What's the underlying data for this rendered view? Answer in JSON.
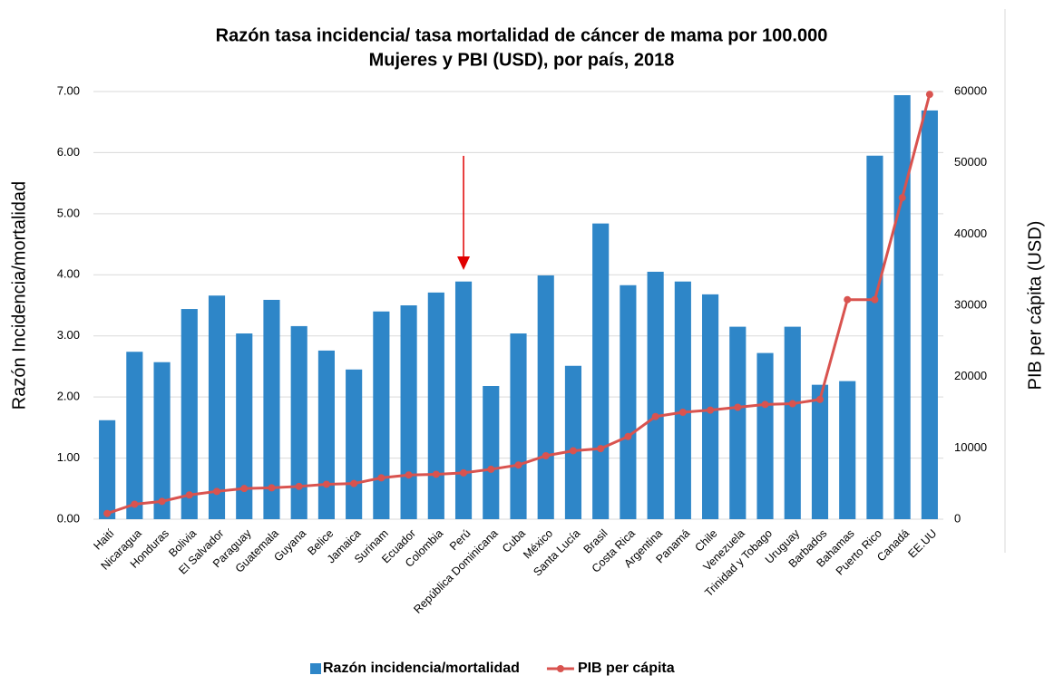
{
  "chart_data": {
    "type": "bar",
    "title": [
      "Razón tasa incidencia/ tasa mortalidad de cáncer de mama por 100.000",
      "Mujeres y PBI (USD), por país, 2018"
    ],
    "y_label": "Razón Incidencia/mortalidad",
    "y2_label": "PIB per cápita  (USD)",
    "categories": [
      "Haití",
      "Nicaragua",
      "Honduras",
      "Bolivia",
      "El Salvador",
      "Paraguay",
      "Guatemala",
      "Guyana",
      "Belice",
      "Jamaica",
      "Surinam",
      "Ecuador",
      "Colombia",
      "Perú",
      "República Dominicana",
      "Cuba",
      "México",
      "Santa Lucía",
      "Brasil",
      "Costa Rica",
      "Argentina",
      "Panamá",
      "Chile",
      "Venezuela",
      "Trinidad y Tobago",
      "Uruguay",
      "Barbados",
      "Bahamas",
      "Puerto Rico",
      "Canadá",
      "EE.UU"
    ],
    "series": [
      {
        "name": "Razón incidencia/mortalidad",
        "type": "bar",
        "color": "#2e86c8",
        "values": [
          1.62,
          2.74,
          2.57,
          3.44,
          3.66,
          3.04,
          3.59,
          3.16,
          2.76,
          2.45,
          3.4,
          3.5,
          3.71,
          3.89,
          2.18,
          3.04,
          3.99,
          2.51,
          4.84,
          3.83,
          4.05,
          3.89,
          3.68,
          3.15,
          2.72,
          3.15,
          2.2,
          2.26,
          5.95,
          6.94,
          6.69
        ]
      },
      {
        "name": "PIB per cápita",
        "type": "line",
        "axis": "y2",
        "color": "#d9534f",
        "values": [
          800,
          2100,
          2500,
          3400,
          3900,
          4300,
          4400,
          4600,
          4900,
          5000,
          5800,
          6200,
          6300,
          6500,
          7000,
          7600,
          8900,
          9600,
          9900,
          11600,
          14400,
          15000,
          15300,
          15700,
          16100,
          16200,
          16800,
          30800,
          30800,
          45100,
          59600
        ]
      }
    ],
    "ylim": [
      0,
      7
    ],
    "yticks": [
      {
        "value": 0,
        "label": "0.00"
      },
      {
        "value": 1,
        "label": "1.00"
      },
      {
        "value": 2,
        "label": "2.00"
      },
      {
        "value": 3,
        "label": "3.00"
      },
      {
        "value": 4,
        "label": "4.00"
      },
      {
        "value": 5,
        "label": "5.00"
      },
      {
        "value": 6,
        "label": "6.00"
      },
      {
        "value": 7,
        "label": "7.00"
      }
    ],
    "y2lim": [
      0,
      60000
    ],
    "y2ticks": [
      0,
      10000,
      20000,
      30000,
      40000,
      50000,
      60000
    ],
    "grid": true,
    "legend": "bottom"
  }
}
